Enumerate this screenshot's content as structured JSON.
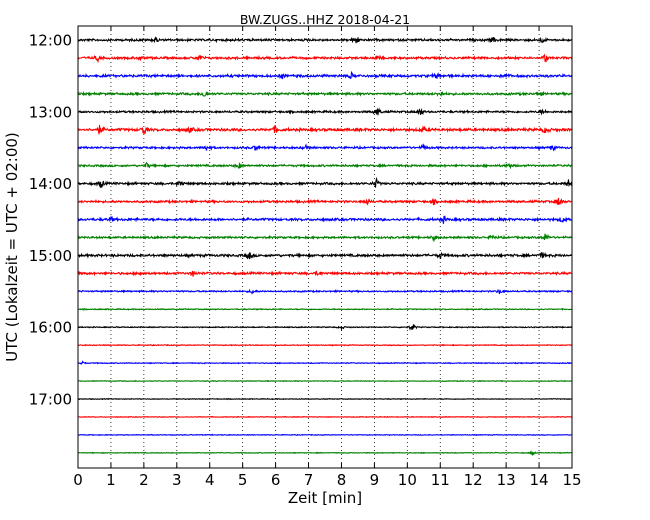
{
  "chart_data": {
    "type": "line",
    "title": "BW.ZUGS..HHZ 2018-04-21",
    "xlabel": "Zeit  [min]",
    "ylabel": "UTC (Lokalzeit = UTC + 02:00)",
    "xlim": [
      0,
      15
    ],
    "x_ticks": [
      0,
      1,
      2,
      3,
      4,
      5,
      6,
      7,
      8,
      9,
      10,
      11,
      12,
      13,
      14,
      15
    ],
    "x_tick_labels": [
      "0",
      "1",
      "2",
      "3",
      "4",
      "5",
      "6",
      "7",
      "8",
      "9",
      "10",
      "11",
      "12",
      "13",
      "14",
      "15"
    ],
    "y_tick_labels": [
      "12:00",
      "13:00",
      "14:00",
      "15:00",
      "16:00",
      "17:00"
    ],
    "y_tick_rows": [
      0,
      4,
      8,
      12,
      16,
      20
    ],
    "vertical_grid": "dotted",
    "color_cycle": [
      "#000000",
      "#ff0000",
      "#0000ff",
      "#008000"
    ],
    "traces": [
      {
        "start": "12:00",
        "noise": 0.9,
        "events": [
          [
            2.35,
            3
          ],
          [
            8.45,
            5
          ],
          [
            12.6,
            3
          ],
          [
            14.1,
            2.5
          ]
        ]
      },
      {
        "start": "12:15",
        "noise": 0.9,
        "events": [
          [
            0.6,
            3
          ],
          [
            1.9,
            2.5
          ],
          [
            3.7,
            3
          ],
          [
            9.1,
            3
          ],
          [
            14.2,
            5
          ]
        ]
      },
      {
        "start": "12:30",
        "noise": 1.0,
        "events": [
          [
            6.2,
            2.5
          ],
          [
            8.3,
            3
          ],
          [
            10.9,
            2.5
          ],
          [
            13.0,
            2
          ]
        ]
      },
      {
        "start": "12:45",
        "noise": 0.9,
        "events": [
          [
            3.85,
            5
          ],
          [
            11.0,
            3
          ],
          [
            14.0,
            2.5
          ]
        ]
      },
      {
        "start": "13:00",
        "noise": 0.8,
        "events": [
          [
            9.1,
            5
          ],
          [
            10.4,
            4
          ],
          [
            14.1,
            2.5
          ]
        ]
      },
      {
        "start": "13:15",
        "noise": 1.1,
        "events": [
          [
            0.65,
            4.5
          ],
          [
            2.0,
            6
          ],
          [
            3.4,
            3
          ],
          [
            6.0,
            4.5
          ],
          [
            10.5,
            3
          ],
          [
            14.2,
            4
          ]
        ]
      },
      {
        "start": "13:30",
        "noise": 0.8,
        "events": [
          [
            3.9,
            3
          ],
          [
            5.4,
            3
          ],
          [
            6.9,
            2.5
          ],
          [
            10.5,
            3
          ],
          [
            14.4,
            3
          ]
        ]
      },
      {
        "start": "13:45",
        "noise": 0.8,
        "events": [
          [
            2.1,
            3
          ],
          [
            4.9,
            3
          ],
          [
            13.1,
            3
          ]
        ]
      },
      {
        "start": "14:00",
        "noise": 0.9,
        "events": [
          [
            0.7,
            4
          ],
          [
            3.1,
            4
          ],
          [
            9.05,
            5
          ],
          [
            14.9,
            4
          ]
        ]
      },
      {
        "start": "14:15",
        "noise": 0.9,
        "events": [
          [
            8.8,
            3
          ],
          [
            10.8,
            3
          ],
          [
            14.6,
            5
          ]
        ]
      },
      {
        "start": "14:30",
        "noise": 1.0,
        "events": [
          [
            1.0,
            2.5
          ],
          [
            11.1,
            3
          ],
          [
            14.7,
            3
          ]
        ]
      },
      {
        "start": "14:45",
        "noise": 0.8,
        "events": [
          [
            10.8,
            3
          ],
          [
            12.6,
            3
          ],
          [
            14.2,
            5
          ]
        ]
      },
      {
        "start": "15:00",
        "noise": 1.0,
        "events": [
          [
            5.2,
            4
          ],
          [
            11.0,
            3
          ],
          [
            14.1,
            3
          ]
        ]
      },
      {
        "start": "15:15",
        "noise": 0.9,
        "events": [
          [
            1.9,
            2.5
          ],
          [
            3.5,
            3
          ],
          [
            7.3,
            3
          ]
        ]
      },
      {
        "start": "15:30",
        "noise": 0.6,
        "events": [
          [
            5.3,
            2.5
          ],
          [
            12.8,
            2.5
          ]
        ]
      },
      {
        "start": "15:45",
        "noise": 0.4,
        "events": []
      },
      {
        "start": "16:00",
        "noise": 0.4,
        "events": [
          [
            8.0,
            2
          ],
          [
            10.15,
            5
          ]
        ]
      },
      {
        "start": "16:15",
        "noise": 0.35,
        "events": []
      },
      {
        "start": "16:30",
        "noise": 0.35,
        "events": [
          [
            0.1,
            3
          ]
        ]
      },
      {
        "start": "16:45",
        "noise": 0.3,
        "events": []
      },
      {
        "start": "17:00",
        "noise": 0.3,
        "events": []
      },
      {
        "start": "17:15",
        "noise": 0.3,
        "events": []
      },
      {
        "start": "17:30",
        "noise": 0.3,
        "events": []
      },
      {
        "start": "17:45",
        "noise": 0.3,
        "events": [
          [
            13.8,
            2
          ]
        ]
      }
    ]
  }
}
